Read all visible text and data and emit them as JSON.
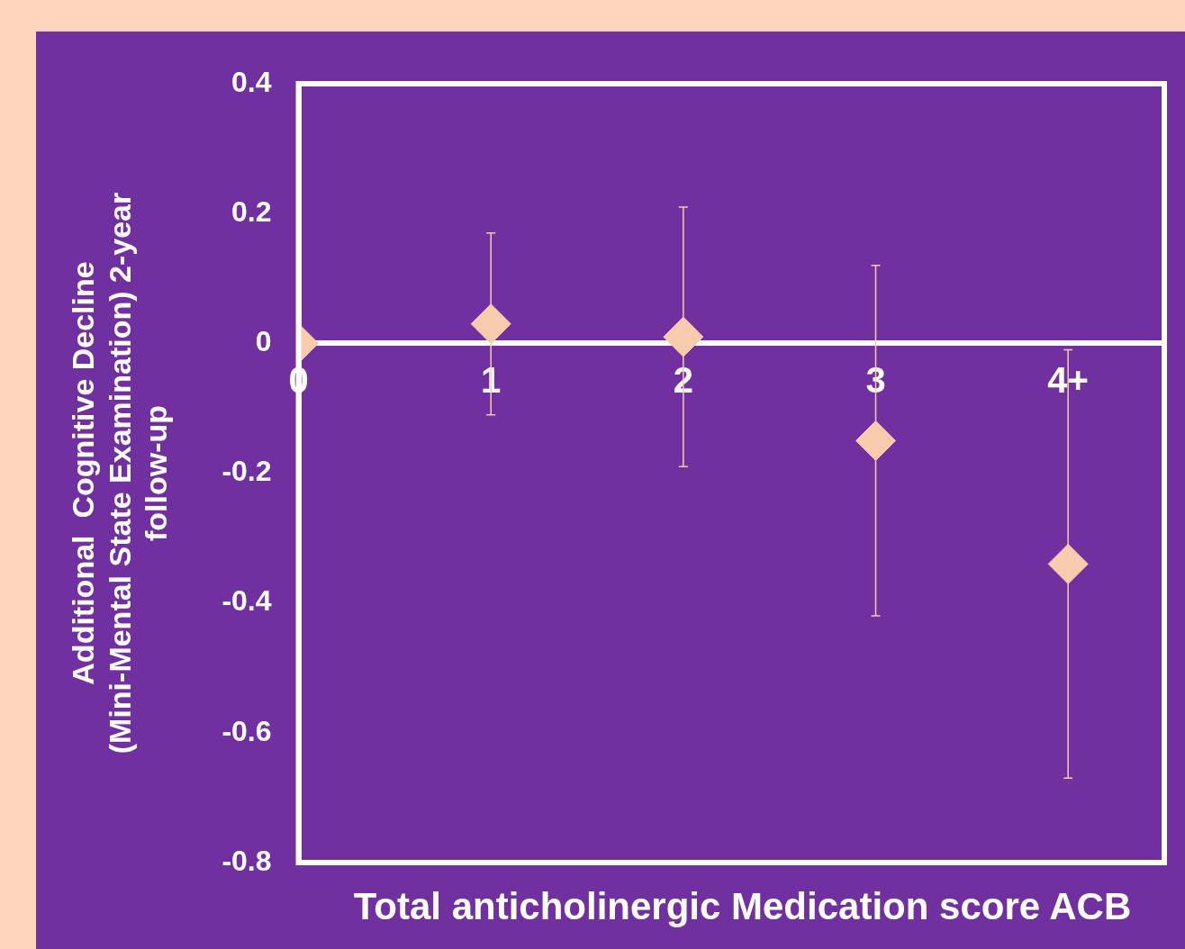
{
  "chart_data": {
    "type": "scatter",
    "xlabel": "Total anticholinergic Medication score ACB",
    "ylabel": "Additional  Cognitive Decline (Mini-Mental State Examination) 2-year follow-up",
    "categories": [
      "0",
      "1",
      "2",
      "3",
      "4+"
    ],
    "series": [
      {
        "color": "#f8cbad",
        "values": [
          0,
          0.03,
          0.01,
          -0.15,
          -0.34
        ],
        "errors": [
          null,
          [
            -0.11,
            0.17
          ],
          [
            -0.19,
            0.21
          ],
          [
            -0.42,
            0.12
          ],
          [
            -0.67,
            -0.01
          ]
        ]
      }
    ],
    "ylim": [
      -0.8,
      0.4
    ],
    "yticks": [
      -0.8,
      -0.6,
      -0.4,
      -0.2,
      0,
      0.2,
      0.4
    ],
    "grid": false,
    "legend": false,
    "marker": "diamond"
  }
}
